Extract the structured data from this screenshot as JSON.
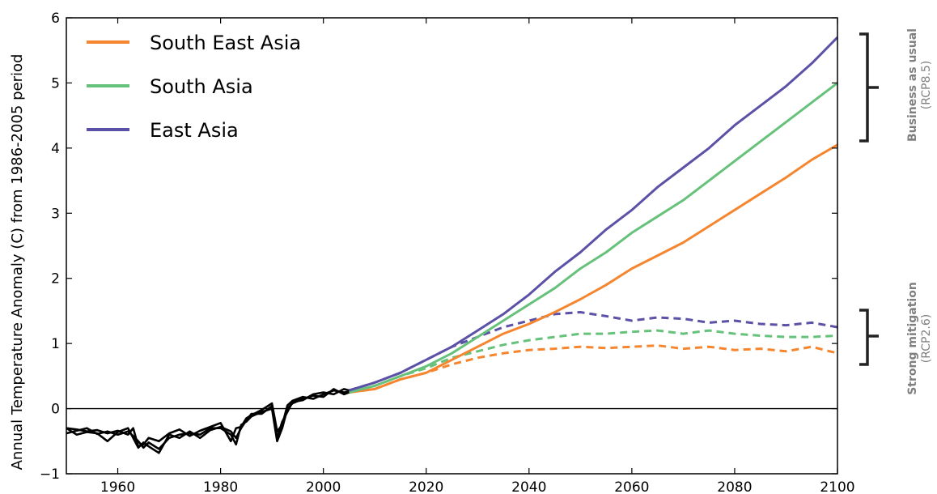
{
  "chart_data": {
    "type": "line",
    "ylabel": "Annual Temperature Anomaly (C) from 1986-2005 period",
    "xlim": [
      1950,
      2100
    ],
    "ylim": [
      -1,
      6
    ],
    "x_ticks": [
      1960,
      1980,
      2000,
      2020,
      2040,
      2060,
      2080,
      2100
    ],
    "y_ticks": [
      -1,
      0,
      1,
      2,
      3,
      4,
      5,
      6
    ],
    "zero_line": true,
    "grid": false,
    "legend_position": "top-left",
    "legend": [
      {
        "label": "South East Asia",
        "color": "#f5862f"
      },
      {
        "label": "South Asia",
        "color": "#66c17a"
      },
      {
        "label": "East Asia",
        "color": "#5b51a6"
      }
    ],
    "historical": {
      "color": "#000000",
      "x": [
        1950,
        1952,
        1954,
        1956,
        1958,
        1960,
        1962,
        1963,
        1964,
        1965,
        1966,
        1968,
        1970,
        1972,
        1974,
        1976,
        1978,
        1980,
        1982,
        1983,
        1984,
        1985,
        1986,
        1988,
        1990,
        1991,
        1992,
        1993,
        1994,
        1996,
        1998,
        2000,
        2002,
        2004,
        2005
      ],
      "series": [
        {
          "name": "South East Asia",
          "values": [
            -0.3,
            -0.32,
            -0.35,
            -0.33,
            -0.38,
            -0.34,
            -0.4,
            -0.3,
            -0.58,
            -0.55,
            -0.45,
            -0.5,
            -0.38,
            -0.32,
            -0.42,
            -0.34,
            -0.28,
            -0.22,
            -0.5,
            -0.3,
            -0.28,
            -0.15,
            -0.1,
            -0.02,
            0.08,
            -0.35,
            -0.25,
            0.05,
            0.12,
            0.18,
            0.15,
            0.22,
            0.28,
            0.25,
            0.26
          ]
        },
        {
          "name": "South Asia",
          "values": [
            -0.38,
            -0.34,
            -0.3,
            -0.39,
            -0.35,
            -0.4,
            -0.35,
            -0.42,
            -0.5,
            -0.6,
            -0.52,
            -0.62,
            -0.45,
            -0.4,
            -0.38,
            -0.4,
            -0.3,
            -0.3,
            -0.4,
            -0.55,
            -0.25,
            -0.2,
            -0.12,
            -0.05,
            0.0,
            -0.5,
            -0.3,
            0.0,
            0.08,
            0.15,
            0.2,
            0.18,
            0.3,
            0.22,
            0.25
          ]
        },
        {
          "name": "East Asia",
          "values": [
            -0.3,
            -0.4,
            -0.36,
            -0.38,
            -0.5,
            -0.36,
            -0.3,
            -0.45,
            -0.6,
            -0.52,
            -0.58,
            -0.68,
            -0.4,
            -0.45,
            -0.35,
            -0.45,
            -0.33,
            -0.28,
            -0.35,
            -0.45,
            -0.3,
            -0.18,
            -0.08,
            -0.08,
            0.04,
            -0.45,
            -0.2,
            -0.05,
            0.1,
            0.13,
            0.22,
            0.25,
            0.22,
            0.3,
            0.28
          ]
        }
      ]
    },
    "scenarios": [
      {
        "name": "Business as usual",
        "sub": "(RCP8.5)",
        "style": "solid",
        "x": [
          2005,
          2010,
          2015,
          2020,
          2025,
          2030,
          2035,
          2040,
          2045,
          2050,
          2055,
          2060,
          2065,
          2070,
          2075,
          2080,
          2085,
          2090,
          2095,
          2100
        ],
        "series": [
          {
            "name": "South East Asia",
            "values": [
              0.25,
              0.3,
              0.45,
              0.55,
              0.75,
              0.95,
              1.15,
              1.3,
              1.48,
              1.68,
              1.9,
              2.15,
              2.35,
              2.55,
              2.8,
              3.05,
              3.3,
              3.55,
              3.82,
              4.05
            ]
          },
          {
            "name": "South Asia",
            "values": [
              0.25,
              0.35,
              0.5,
              0.65,
              0.85,
              1.1,
              1.35,
              1.6,
              1.85,
              2.15,
              2.4,
              2.7,
              2.95,
              3.2,
              3.5,
              3.8,
              4.1,
              4.4,
              4.7,
              5.0
            ]
          },
          {
            "name": "East Asia",
            "values": [
              0.28,
              0.4,
              0.55,
              0.75,
              0.95,
              1.2,
              1.45,
              1.75,
              2.1,
              2.4,
              2.75,
              3.05,
              3.4,
              3.7,
              4.0,
              4.35,
              4.65,
              4.95,
              5.3,
              5.7
            ]
          }
        ]
      },
      {
        "name": "Strong mitigation",
        "sub": "(RCP2.6)",
        "style": "dashed",
        "x": [
          2005,
          2010,
          2015,
          2020,
          2025,
          2030,
          2035,
          2040,
          2045,
          2050,
          2055,
          2060,
          2065,
          2070,
          2075,
          2080,
          2085,
          2090,
          2095,
          2100
        ],
        "series": [
          {
            "name": "South East Asia",
            "values": [
              0.25,
              0.3,
              0.45,
              0.55,
              0.68,
              0.78,
              0.85,
              0.9,
              0.92,
              0.95,
              0.93,
              0.95,
              0.97,
              0.92,
              0.95,
              0.9,
              0.92,
              0.88,
              0.95,
              0.85
            ]
          },
          {
            "name": "South Asia",
            "values": [
              0.25,
              0.35,
              0.5,
              0.62,
              0.78,
              0.88,
              0.98,
              1.05,
              1.1,
              1.15,
              1.15,
              1.18,
              1.2,
              1.15,
              1.2,
              1.15,
              1.12,
              1.1,
              1.1,
              1.12
            ]
          },
          {
            "name": "East Asia",
            "values": [
              0.28,
              0.4,
              0.55,
              0.75,
              0.95,
              1.1,
              1.25,
              1.35,
              1.45,
              1.48,
              1.42,
              1.35,
              1.4,
              1.38,
              1.32,
              1.35,
              1.3,
              1.28,
              1.32,
              1.25
            ]
          }
        ]
      }
    ]
  }
}
